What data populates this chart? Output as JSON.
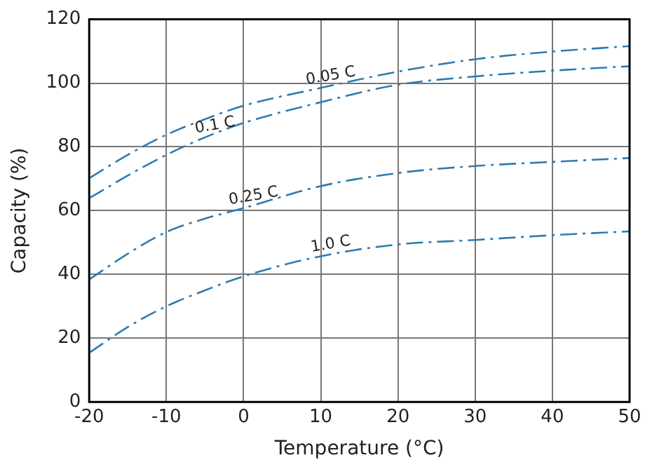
{
  "chart_data": {
    "type": "line",
    "xlabel": "Temperature (°C)",
    "ylabel": "Capacity (%)",
    "xlim": [
      -20,
      50
    ],
    "xticks": [
      -20,
      -10,
      0,
      10,
      20,
      30,
      40,
      50
    ],
    "ylim": [
      0,
      120
    ],
    "yticks": [
      0,
      20,
      40,
      60,
      80,
      100,
      120
    ],
    "grid": true,
    "legend": false,
    "marker": "none",
    "line_style": "dashed",
    "x": [
      -20,
      -15,
      -10,
      -5,
      0,
      10,
      20,
      30,
      40,
      50
    ],
    "series": [
      {
        "color": "#2e7bb0",
        "values": [
          70.2,
          77.5,
          83.8,
          88.7,
          92.9,
          98.5,
          103.6,
          107.5,
          109.9,
          111.6
        ]
      },
      {
        "color": "#2e7bb0",
        "values": [
          63.9,
          71,
          77.5,
          83,
          87.5,
          94,
          99.5,
          102.1,
          103.9,
          105.3
        ]
      },
      {
        "color": "#2e7bb0",
        "values": [
          38.4,
          46.5,
          53.3,
          57.5,
          60.8,
          67.7,
          71.8,
          74,
          75.3,
          76.5
        ]
      },
      {
        "color": "#2e7bb0",
        "values": [
          15.4,
          23.5,
          30,
          35,
          39.4,
          45.7,
          49.4,
          50.8,
          52.3,
          53.5
        ]
      }
    ],
    "annotations": [
      {
        "text": "0.05 C",
        "x": 10,
        "y": 98.5
      },
      {
        "text": "0.1 C",
        "x": -5,
        "y": 83
      },
      {
        "text": "0.25 C",
        "x": 0,
        "y": 60.8
      },
      {
        "text": "1.0 C",
        "x": 10,
        "y": 45.7
      }
    ]
  }
}
